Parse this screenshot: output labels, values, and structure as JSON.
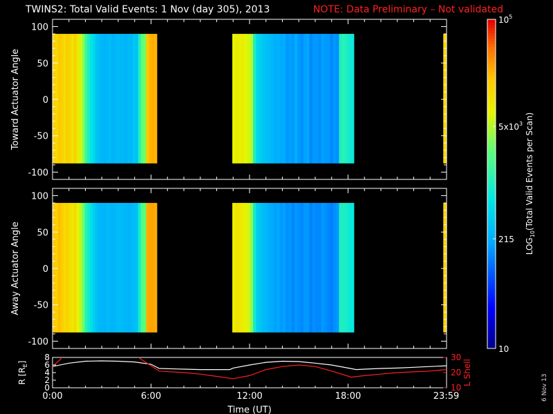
{
  "header": {
    "title": "TWINS2: Total Valid Events:  1 Nov (day 305), 2013",
    "note": "NOTE: Data Preliminary – Not validated"
  },
  "stamp": "6 Nov 13",
  "colors": {
    "note": "#ff2020",
    "r_line": "#ffffff",
    "lshell_line": "#ff2020",
    "background": "#000000"
  },
  "chart_data": [
    {
      "type": "heatmap",
      "id": "toward",
      "ylabel": "Toward Actuator Angle",
      "xlim": [
        0,
        24
      ],
      "ylim": [
        -110,
        110
      ],
      "yticks": [
        100,
        50,
        0,
        -50,
        -100
      ],
      "data_y_range": [
        -88,
        90
      ],
      "segments": [
        {
          "x0": 0.0,
          "x1": 6.35,
          "intensity": [
            0.8,
            0.78,
            0.82,
            0.8,
            0.77,
            0.81,
            0.79,
            0.76,
            0.8,
            0.74,
            0.7,
            0.65,
            0.55,
            0.5,
            0.45,
            0.42,
            0.38,
            0.36,
            0.35,
            0.34,
            0.35,
            0.36,
            0.34,
            0.35,
            0.36,
            0.35,
            0.35,
            0.34,
            0.36,
            0.35,
            0.38,
            0.37,
            0.5,
            0.6,
            0.62,
            0.82,
            0.84,
            0.85,
            0.84
          ]
        },
        {
          "x0": 10.95,
          "x1": 18.35,
          "intensity": [
            0.72,
            0.74,
            0.73,
            0.74,
            0.72,
            0.7,
            0.68,
            0.5,
            0.42,
            0.4,
            0.38,
            0.37,
            0.36,
            0.35,
            0.33,
            0.34,
            0.32,
            0.33,
            0.3,
            0.31,
            0.3,
            0.33,
            0.3,
            0.29,
            0.31,
            0.32,
            0.28,
            0.3,
            0.3,
            0.29,
            0.31,
            0.3,
            0.3,
            0.28,
            0.3,
            0.29,
            0.5,
            0.52,
            0.5,
            0.48,
            0.47
          ]
        },
        {
          "x0": 23.8,
          "x1": 24.0,
          "intensity": [
            0.78,
            0.8
          ]
        }
      ]
    },
    {
      "type": "heatmap",
      "id": "away",
      "ylabel": "Away Actuator Angle",
      "xlim": [
        0,
        24
      ],
      "ylim": [
        -110,
        110
      ],
      "yticks": [
        100,
        50,
        0,
        -50,
        -100
      ],
      "data_y_range": [
        -88,
        90
      ],
      "segments": [
        {
          "x0": 0.0,
          "x1": 6.35,
          "intensity": [
            0.82,
            0.8,
            0.83,
            0.81,
            0.78,
            0.8,
            0.77,
            0.75,
            0.78,
            0.72,
            0.68,
            0.62,
            0.52,
            0.48,
            0.44,
            0.4,
            0.37,
            0.35,
            0.35,
            0.34,
            0.36,
            0.35,
            0.34,
            0.35,
            0.36,
            0.36,
            0.35,
            0.35,
            0.34,
            0.35,
            0.36,
            0.37,
            0.48,
            0.58,
            0.6,
            0.85,
            0.86,
            0.86,
            0.85
          ]
        },
        {
          "x0": 10.95,
          "x1": 18.35,
          "intensity": [
            0.74,
            0.76,
            0.75,
            0.74,
            0.73,
            0.7,
            0.65,
            0.48,
            0.4,
            0.38,
            0.36,
            0.35,
            0.33,
            0.32,
            0.31,
            0.32,
            0.3,
            0.31,
            0.29,
            0.3,
            0.28,
            0.3,
            0.29,
            0.28,
            0.3,
            0.3,
            0.27,
            0.29,
            0.28,
            0.28,
            0.3,
            0.29,
            0.28,
            0.27,
            0.29,
            0.3,
            0.5,
            0.5,
            0.49,
            0.47,
            0.46
          ]
        },
        {
          "x0": 23.8,
          "x1": 24.0,
          "intensity": [
            0.8,
            0.81
          ]
        }
      ]
    },
    {
      "type": "line",
      "id": "orbit",
      "xlabel": "Time (UT)",
      "xticks": [
        "0:00",
        "6:00",
        "12:00",
        "18:00",
        "23:59"
      ],
      "xtick_values": [
        0,
        6,
        12,
        18,
        23.98
      ],
      "xlim": [
        0,
        24
      ],
      "ylabel_left": "R [R",
      "ylabel_left_sub": "E",
      "ylabel_left_end": "]",
      "ylim_left": [
        0,
        8
      ],
      "yticks_left": [
        "8",
        "6",
        "4",
        "2",
        "0"
      ],
      "ylabel_right": "L Shell",
      "ylim_right": [
        10,
        30
      ],
      "yticks_right": [
        "30",
        "20",
        "10"
      ],
      "series": [
        {
          "axis": "left",
          "x": [
            0,
            1,
            2,
            3,
            4,
            5,
            6,
            6.5,
            8,
            9,
            10,
            10.8,
            11,
            12,
            13,
            14,
            15,
            16,
            17,
            18,
            18.5,
            19,
            20,
            21,
            22,
            23,
            24
          ],
          "y": [
            5.6,
            6.5,
            7.0,
            7.1,
            7.0,
            6.8,
            6.2,
            5.1,
            4.9,
            4.8,
            4.8,
            4.8,
            5.2,
            6.0,
            6.7,
            7.0,
            6.9,
            6.5,
            6.0,
            5.2,
            4.8,
            4.9,
            5.1,
            5.2,
            5.4,
            5.6,
            5.8
          ]
        },
        {
          "axis": "right",
          "x": [
            0,
            0.5,
            0.6,
            5.1,
            5.5,
            6.5,
            8,
            9,
            10,
            11,
            12,
            13,
            14,
            15,
            16,
            17,
            18.2,
            19,
            20,
            21,
            22,
            23,
            24
          ],
          "y": [
            24,
            29,
            31,
            31,
            28,
            21,
            20,
            19,
            17.5,
            16,
            18,
            22,
            24,
            25,
            24,
            21,
            17,
            18,
            19,
            20,
            20.5,
            21,
            22
          ]
        }
      ]
    },
    {
      "type": "heatmap",
      "id": "colorbar",
      "label": "LOG",
      "label_sub": "10",
      "label_rest": "(Total Valid Events per Scan)",
      "scale": "log",
      "range": [
        10,
        100000
      ],
      "ticks": [
        {
          "value": 100000,
          "base": "10",
          "exp": "5"
        },
        {
          "value": 5000,
          "text": "5x10",
          "exp": "3"
        },
        {
          "value": 215,
          "text": "215"
        },
        {
          "value": 10,
          "text": "10"
        }
      ]
    }
  ]
}
